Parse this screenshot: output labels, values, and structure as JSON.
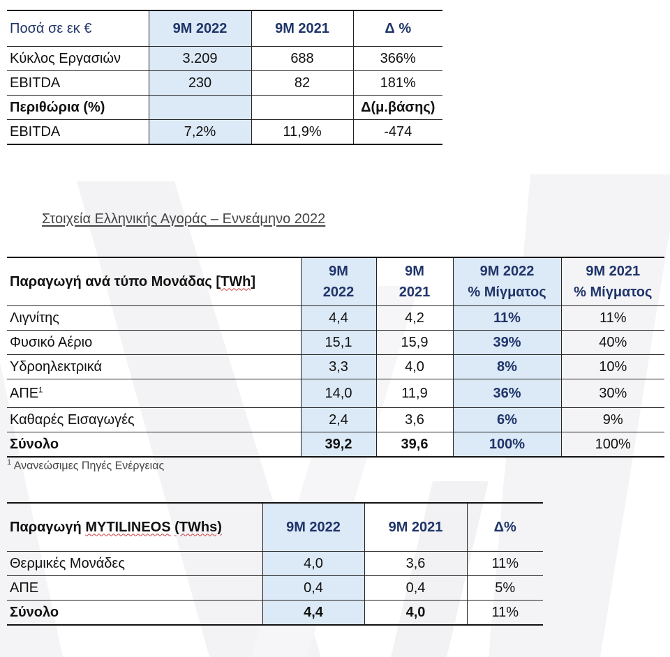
{
  "table1": {
    "headers": [
      "Ποσά σε εκ €",
      "9M 2022",
      "9M 2021",
      "Δ %"
    ],
    "rows": [
      {
        "label": "Κύκλος Εργασιών",
        "v1": "3.209",
        "v2": "688",
        "v3": "366%"
      },
      {
        "label": "EBITDA",
        "v1": "230",
        "v2": "82",
        "v3": "181%"
      }
    ],
    "margins_label": "Περιθώρια (%)",
    "margins_delta_label": "Δ(μ.βάσης)",
    "margin_row": {
      "label": "EBITDA",
      "v1": "7,2%",
      "v2": "11,9%",
      "v3": "-474"
    }
  },
  "caption": "Στοιχεία Ελληνικής Αγοράς – Εννεάμηνο 2022",
  "table2": {
    "header_label_pre": "Παραγωγή ανά τύπο Μονάδας [",
    "header_label_unit": "TWh",
    "header_label_post": "]",
    "h1_top": "9M",
    "h1_bottom": "2022",
    "h2_top": "9M",
    "h2_bottom": "2021",
    "h3_top": "9M 2022",
    "h3_bottom": "% Μίγματος",
    "h4_top": "9M 2021",
    "h4_bottom": "% Μίγματος",
    "rows": [
      {
        "label": "Λιγνίτης",
        "v1": "4,4",
        "v2": "4,2",
        "v3": "11%",
        "v4": "11%"
      },
      {
        "label": "Φυσικό Αέριο",
        "v1": "15,1",
        "v2": "15,9",
        "v3": "39%",
        "v4": "40%"
      },
      {
        "label": "Υδροηλεκτρικά",
        "v1": "3,3",
        "v2": "4,0",
        "v3": "8%",
        "v4": "10%"
      },
      {
        "label": "ΑΠΕ",
        "sup": "1",
        "v1": "14,0",
        "v2": "11,9",
        "v3": "36%",
        "v4": "30%"
      },
      {
        "label": "Καθαρές Εισαγωγές",
        "v1": "2,4",
        "v2": "3,6",
        "v3": "6%",
        "v4": "9%"
      }
    ],
    "total": {
      "label": "Σύνολο",
      "v1": "39,2",
      "v2": "39,6",
      "v3": "100%",
      "v4": "100%"
    }
  },
  "footnote": {
    "mark": "1",
    "text": " Ανανεώσιμες Πηγές Ενέργειας"
  },
  "table3": {
    "header_pre": "Παραγωγή ",
    "header_brand": "MYTILINEOS",
    "header_space": " ",
    "header_unit": "(TWhs)",
    "h1": "9M 2022",
    "h2": "9M 2021",
    "h3": "Δ%",
    "rows": [
      {
        "label": "Θερμικές Μονάδες",
        "v1": "4,0",
        "v2": "3,6",
        "v3": "11%"
      },
      {
        "label": "ΑΠΕ",
        "v1": "0,4",
        "v2": "0,4",
        "v3": "5%"
      }
    ],
    "total": {
      "label": "Σύνολο",
      "v1": "4,4",
      "v2": "4,0",
      "v3": "11%"
    }
  },
  "colors": {
    "accent_fill": "#dce9f6",
    "header_text": "#1f3469"
  }
}
